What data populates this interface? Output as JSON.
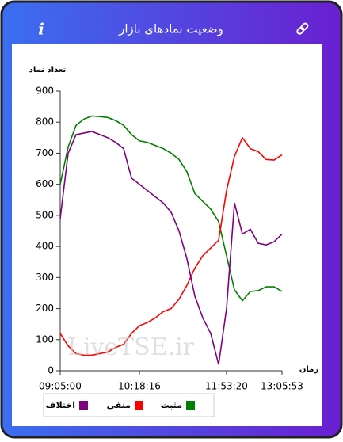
{
  "header": {
    "title": "وضعیت نمادهای بازار",
    "info_icon": "i"
  },
  "chart_data": {
    "type": "line",
    "y_label": "تعداد نماد",
    "x_label": "زمان",
    "watermark": "LiveTSE.ir",
    "categories": [
      "09:05:00",
      null,
      null,
      null,
      null,
      null,
      null,
      null,
      null,
      null,
      "10:18:16",
      null,
      null,
      null,
      null,
      null,
      null,
      null,
      null,
      null,
      null,
      "11:53:20",
      null,
      null,
      null,
      null,
      null,
      null,
      "13:05:53"
    ],
    "series": [
      {
        "name": "مثبت",
        "color": "#008000",
        "values": [
          600,
          720,
          790,
          810,
          820,
          818,
          815,
          805,
          790,
          760,
          740,
          735,
          725,
          715,
          700,
          680,
          640,
          570,
          545,
          520,
          480,
          370,
          260,
          225,
          255,
          258,
          270,
          270,
          255
        ]
      },
      {
        "name": "منفی",
        "color": "#ff0000",
        "values": [
          120,
          80,
          55,
          50,
          50,
          55,
          60,
          75,
          85,
          120,
          145,
          155,
          170,
          190,
          200,
          230,
          275,
          330,
          370,
          395,
          420,
          580,
          690,
          750,
          715,
          705,
          680,
          678,
          695
        ]
      },
      {
        "name": "اختلاف",
        "color": "#800080",
        "values": [
          490,
          700,
          760,
          765,
          770,
          760,
          750,
          735,
          715,
          620,
          600,
          580,
          560,
          540,
          510,
          450,
          360,
          240,
          170,
          120,
          20,
          200,
          540,
          440,
          455,
          410,
          405,
          415,
          440
        ]
      }
    ],
    "ylim": [
      0,
      900
    ],
    "yticks": [
      0,
      100,
      200,
      300,
      400,
      500,
      600,
      700,
      800,
      900
    ],
    "grid": false
  }
}
